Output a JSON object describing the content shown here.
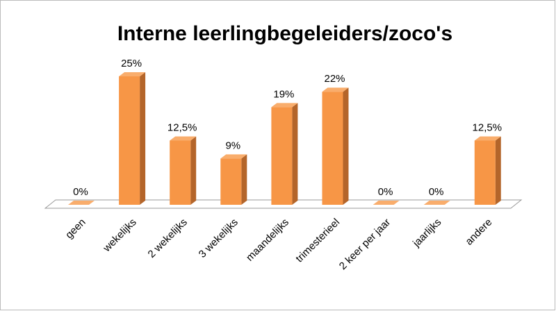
{
  "chart_data": {
    "type": "bar3d",
    "title": "Interne leerlingbegeleiders/zoco's",
    "categories": [
      "geen",
      "wekelijks",
      "2 wekelijks",
      "3 wekelijks",
      "maandelijks",
      "trimesterieel",
      "2 keer per jaar",
      "jaarlijks",
      "andere"
    ],
    "values": [
      0,
      25,
      12.5,
      9,
      19,
      22,
      0,
      0,
      12.5
    ],
    "value_labels": [
      "0%",
      "25%",
      "12,5%",
      "9%",
      "19%",
      "22%",
      "0%",
      "0%",
      "12,5%"
    ],
    "color": "#f79646"
  }
}
